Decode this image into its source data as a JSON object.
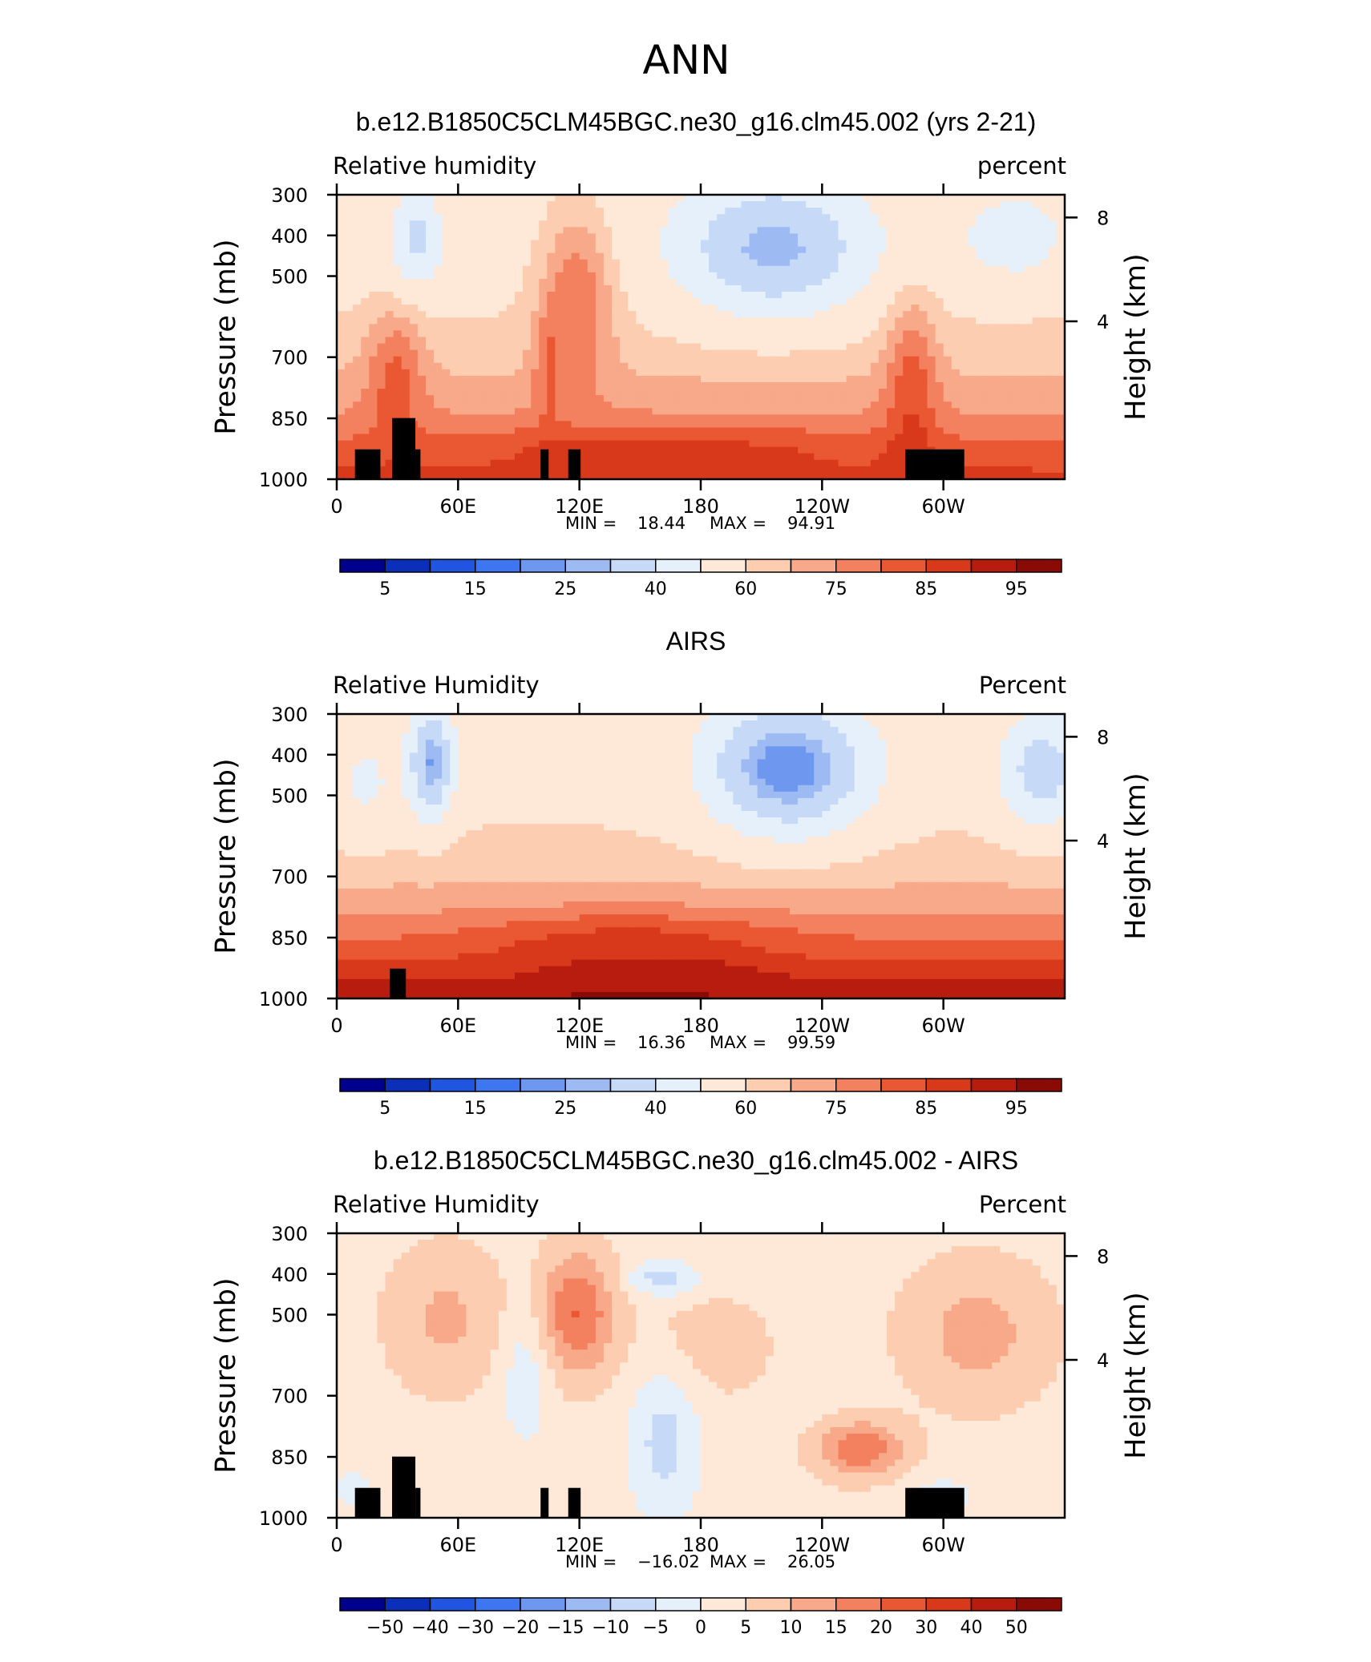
{
  "figure_title": "ANN",
  "chart_data": [
    {
      "type": "heatmap",
      "title": "b.e12.B1850C5CLM45BGC.ne30_g16.clm45.002 (yrs 2-21)",
      "left_label": "Relative humidity",
      "right_label": "percent",
      "ylabel": "Pressure (mb)",
      "ylabel_right": "Height (km)",
      "yticks": [
        "300",
        "400",
        "500",
        "700",
        "850",
        "1000"
      ],
      "yticks_right": [
        "8",
        "4"
      ],
      "xticks": [
        "0",
        "60E",
        "120E",
        "180",
        "120W",
        "60W"
      ],
      "min_label": "MIN =",
      "min_value": "18.44",
      "max_label": "MAX =",
      "max_value": "94.91",
      "colorbar": {
        "labels": [
          "5",
          "15",
          "25",
          "40",
          "60",
          "75",
          "85",
          "95"
        ],
        "colors": [
          "#00008f",
          "#0b2fb8",
          "#1f55e0",
          "#3e75f0",
          "#6e98f0",
          "#9dbaf3",
          "#c6daf8",
          "#e6f0fb",
          "#fee9d8",
          "#fccdb0",
          "#f8a98a",
          "#f3805f",
          "#e95832",
          "#d8391a",
          "#b81c0f",
          "#8a0a06"
        ],
        "range": [
          0,
          100
        ]
      }
    },
    {
      "type": "heatmap",
      "title": "AIRS",
      "left_label": "Relative Humidity",
      "right_label": "Percent",
      "ylabel": "Pressure (mb)",
      "ylabel_right": "Height (km)",
      "yticks": [
        "300",
        "400",
        "500",
        "700",
        "850",
        "1000"
      ],
      "yticks_right": [
        "8",
        "4"
      ],
      "xticks": [
        "0",
        "60E",
        "120E",
        "180",
        "120W",
        "60W"
      ],
      "min_label": "MIN =",
      "min_value": "16.36",
      "max_label": "MAX =",
      "max_value": "99.59",
      "colorbar": {
        "labels": [
          "5",
          "15",
          "25",
          "40",
          "60",
          "75",
          "85",
          "95"
        ],
        "colors": [
          "#00008f",
          "#0b2fb8",
          "#1f55e0",
          "#3e75f0",
          "#6e98f0",
          "#9dbaf3",
          "#c6daf8",
          "#e6f0fb",
          "#fee9d8",
          "#fccdb0",
          "#f8a98a",
          "#f3805f",
          "#e95832",
          "#d8391a",
          "#b81c0f",
          "#8a0a06"
        ],
        "range": [
          0,
          100
        ]
      }
    },
    {
      "type": "heatmap",
      "title": "b.e12.B1850C5CLM45BGC.ne30_g16.clm45.002 - AIRS",
      "left_label": "Relative Humidity",
      "right_label": "Percent",
      "ylabel": "Pressure (mb)",
      "ylabel_right": "Height (km)",
      "yticks": [
        "300",
        "400",
        "500",
        "700",
        "850",
        "1000"
      ],
      "yticks_right": [
        "8",
        "4"
      ],
      "xticks": [
        "0",
        "60E",
        "120E",
        "180",
        "120W",
        "60W"
      ],
      "min_label": "MIN =",
      "min_value": "−16.02",
      "max_label": "MAX =",
      "max_value": "26.05",
      "colorbar": {
        "labels": [
          "−50",
          "−40",
          "−30",
          "−20",
          "−15",
          "−10",
          "−5",
          "0",
          "5",
          "10",
          "15",
          "20",
          "30",
          "40",
          "50"
        ],
        "colors": [
          "#00008f",
          "#0b2fb8",
          "#1f55e0",
          "#3e75f0",
          "#6e98f0",
          "#9dbaf3",
          "#c6daf8",
          "#e6f0fb",
          "#fee9d8",
          "#fccdb0",
          "#f8a98a",
          "#f3805f",
          "#e95832",
          "#d8391a",
          "#b81c0f",
          "#8a0a06"
        ],
        "range": [
          -60,
          60
        ]
      }
    }
  ]
}
